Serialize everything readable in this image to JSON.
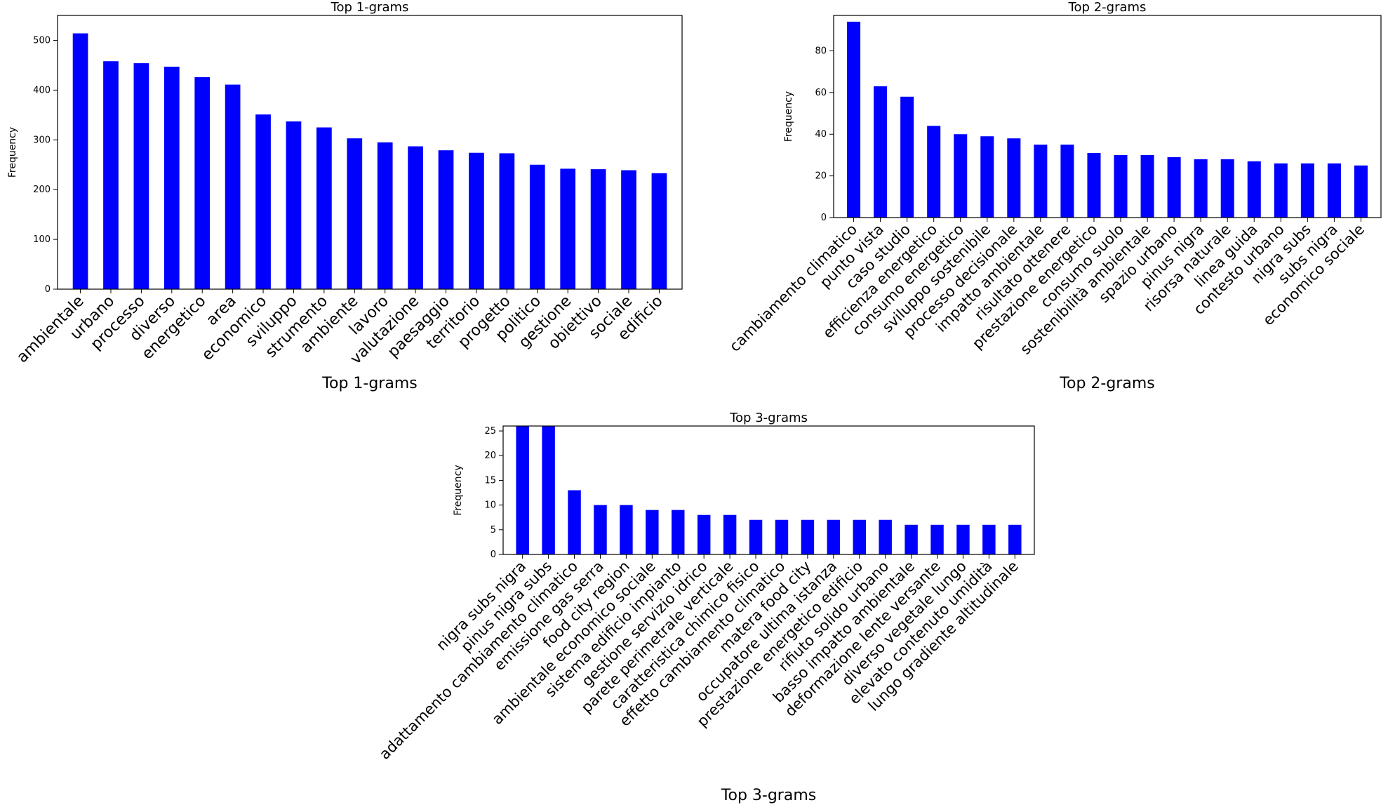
{
  "colors": {
    "bar": "#0000ff",
    "axis": "#000000",
    "background": "#ffffff"
  },
  "chart_data": [
    {
      "type": "bar",
      "title": "Top 1-grams",
      "xlabel": "Top 1-grams",
      "ylabel": "Frequency",
      "ylim": [
        0,
        550
      ],
      "yticks": [
        0,
        100,
        200,
        300,
        400,
        500
      ],
      "grid": false,
      "categories": [
        "ambientale",
        "urbano",
        "processo",
        "diverso",
        "energetico",
        "area",
        "economico",
        "sviluppo",
        "strumento",
        "ambiente",
        "lavoro",
        "valutazione",
        "paesaggio",
        "territorio",
        "progetto",
        "politico",
        "gestione",
        "obiettivo",
        "sociale",
        "edificio"
      ],
      "values": [
        514,
        458,
        454,
        447,
        426,
        411,
        351,
        337,
        325,
        303,
        295,
        287,
        279,
        274,
        273,
        250,
        242,
        241,
        239,
        233
      ]
    },
    {
      "type": "bar",
      "title": "Top 2-grams",
      "xlabel": "Top 2-grams",
      "ylabel": "Frequency",
      "ylim": [
        0,
        97
      ],
      "yticks": [
        0,
        20,
        40,
        60,
        80
      ],
      "grid": false,
      "categories": [
        "cambiamento climatico",
        "punto vista",
        "caso studio",
        "efficienza energetico",
        "consumo energetico",
        "sviluppo sostenibile",
        "processo decisionale",
        "impatto ambientale",
        "risultato ottenere",
        "prestazione energetico",
        "consumo suolo",
        "sostenibilità ambientale",
        "spazio urbano",
        "pinus nigra",
        "risorsa naturale",
        "linea guida",
        "contesto urbano",
        "nigra subs",
        "subs nigra",
        "economico sociale"
      ],
      "values": [
        94,
        63,
        58,
        44,
        40,
        39,
        38,
        35,
        35,
        31,
        30,
        30,
        29,
        28,
        28,
        27,
        26,
        26,
        26,
        25
      ]
    },
    {
      "type": "bar",
      "title": "Top 3-grams",
      "xlabel": "Top 3-grams",
      "ylabel": "Frequency",
      "ylim": [
        0,
        26
      ],
      "yticks": [
        0,
        5,
        10,
        15,
        20,
        25
      ],
      "grid": false,
      "categories": [
        "nigra subs nigra",
        "pinus nigra subs",
        "adattamento cambiamento climatico",
        "emissione gas serra",
        "food city region",
        "ambientale economico sociale",
        "sistema edificio impianto",
        "gestione servizio idrico",
        "parete perimetrale verticale",
        "caratteristica chimico fisico",
        "effetto cambiamento climatico",
        "matera food city",
        "occupatore ultima istanza",
        "prestazione energetico edificio",
        "rifiuto solido urbano",
        "basso impatto ambientale",
        "deformazione lente versante",
        "diverso vegetale lungo",
        "elevato contenuto umidità",
        "lungo gradiente altitudinale"
      ],
      "values": [
        26,
        26,
        13,
        10,
        10,
        9,
        9,
        8,
        8,
        7,
        7,
        7,
        7,
        7,
        7,
        6,
        6,
        6,
        6,
        6
      ]
    }
  ]
}
